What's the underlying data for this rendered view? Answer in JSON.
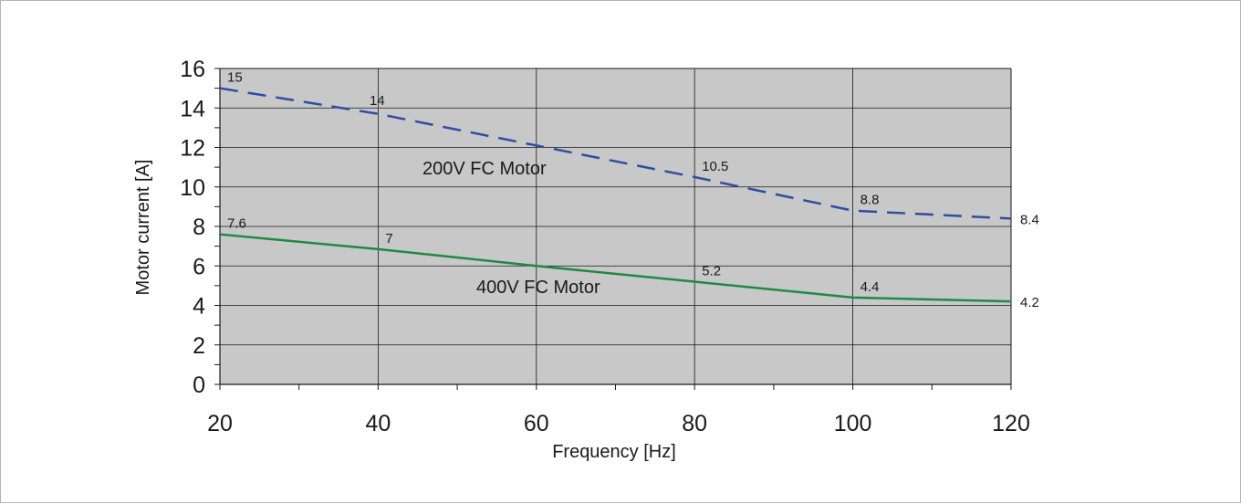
{
  "chart_data": {
    "type": "line",
    "xlabel": "Frequency [Hz]",
    "ylabel": "Motor current [A]",
    "xlim": [
      20,
      120
    ],
    "ylim": [
      0,
      16
    ],
    "x_ticks": [
      "20",
      "40",
      "60",
      "80",
      "100",
      "120"
    ],
    "y_ticks": [
      "0",
      "2",
      "4",
      "6",
      "8",
      "10",
      "12",
      "14",
      "16"
    ],
    "grid": true,
    "plot_background": "#c8c8c8",
    "series": [
      {
        "name": "200V FC Motor",
        "color": "#2e4ea3",
        "style": "dashed",
        "x": [
          20,
          40,
          80,
          100,
          120
        ],
        "values": [
          15,
          13.7,
          10.5,
          8.8,
          8.4
        ],
        "labels": [
          {
            "x": 20,
            "text": "15"
          },
          {
            "x": 38,
            "text": "14"
          },
          {
            "x": 80,
            "text": "10.5"
          },
          {
            "x": 100,
            "text": "8.8"
          },
          {
            "x": 120,
            "text": "8.4"
          }
        ]
      },
      {
        "name": "400V FC Motor",
        "color": "#1f8a43",
        "style": "solid",
        "x": [
          20,
          40,
          60,
          80,
          100,
          120
        ],
        "values": [
          7.6,
          6.85,
          6.0,
          5.2,
          4.4,
          4.2
        ],
        "labels": [
          {
            "x": 20,
            "text": "7.6"
          },
          {
            "x": 40,
            "text": "7"
          },
          {
            "x": 80,
            "text": "5.2"
          },
          {
            "x": 100,
            "text": "4.4"
          },
          {
            "x": 120,
            "text": "4.2"
          }
        ]
      }
    ]
  }
}
